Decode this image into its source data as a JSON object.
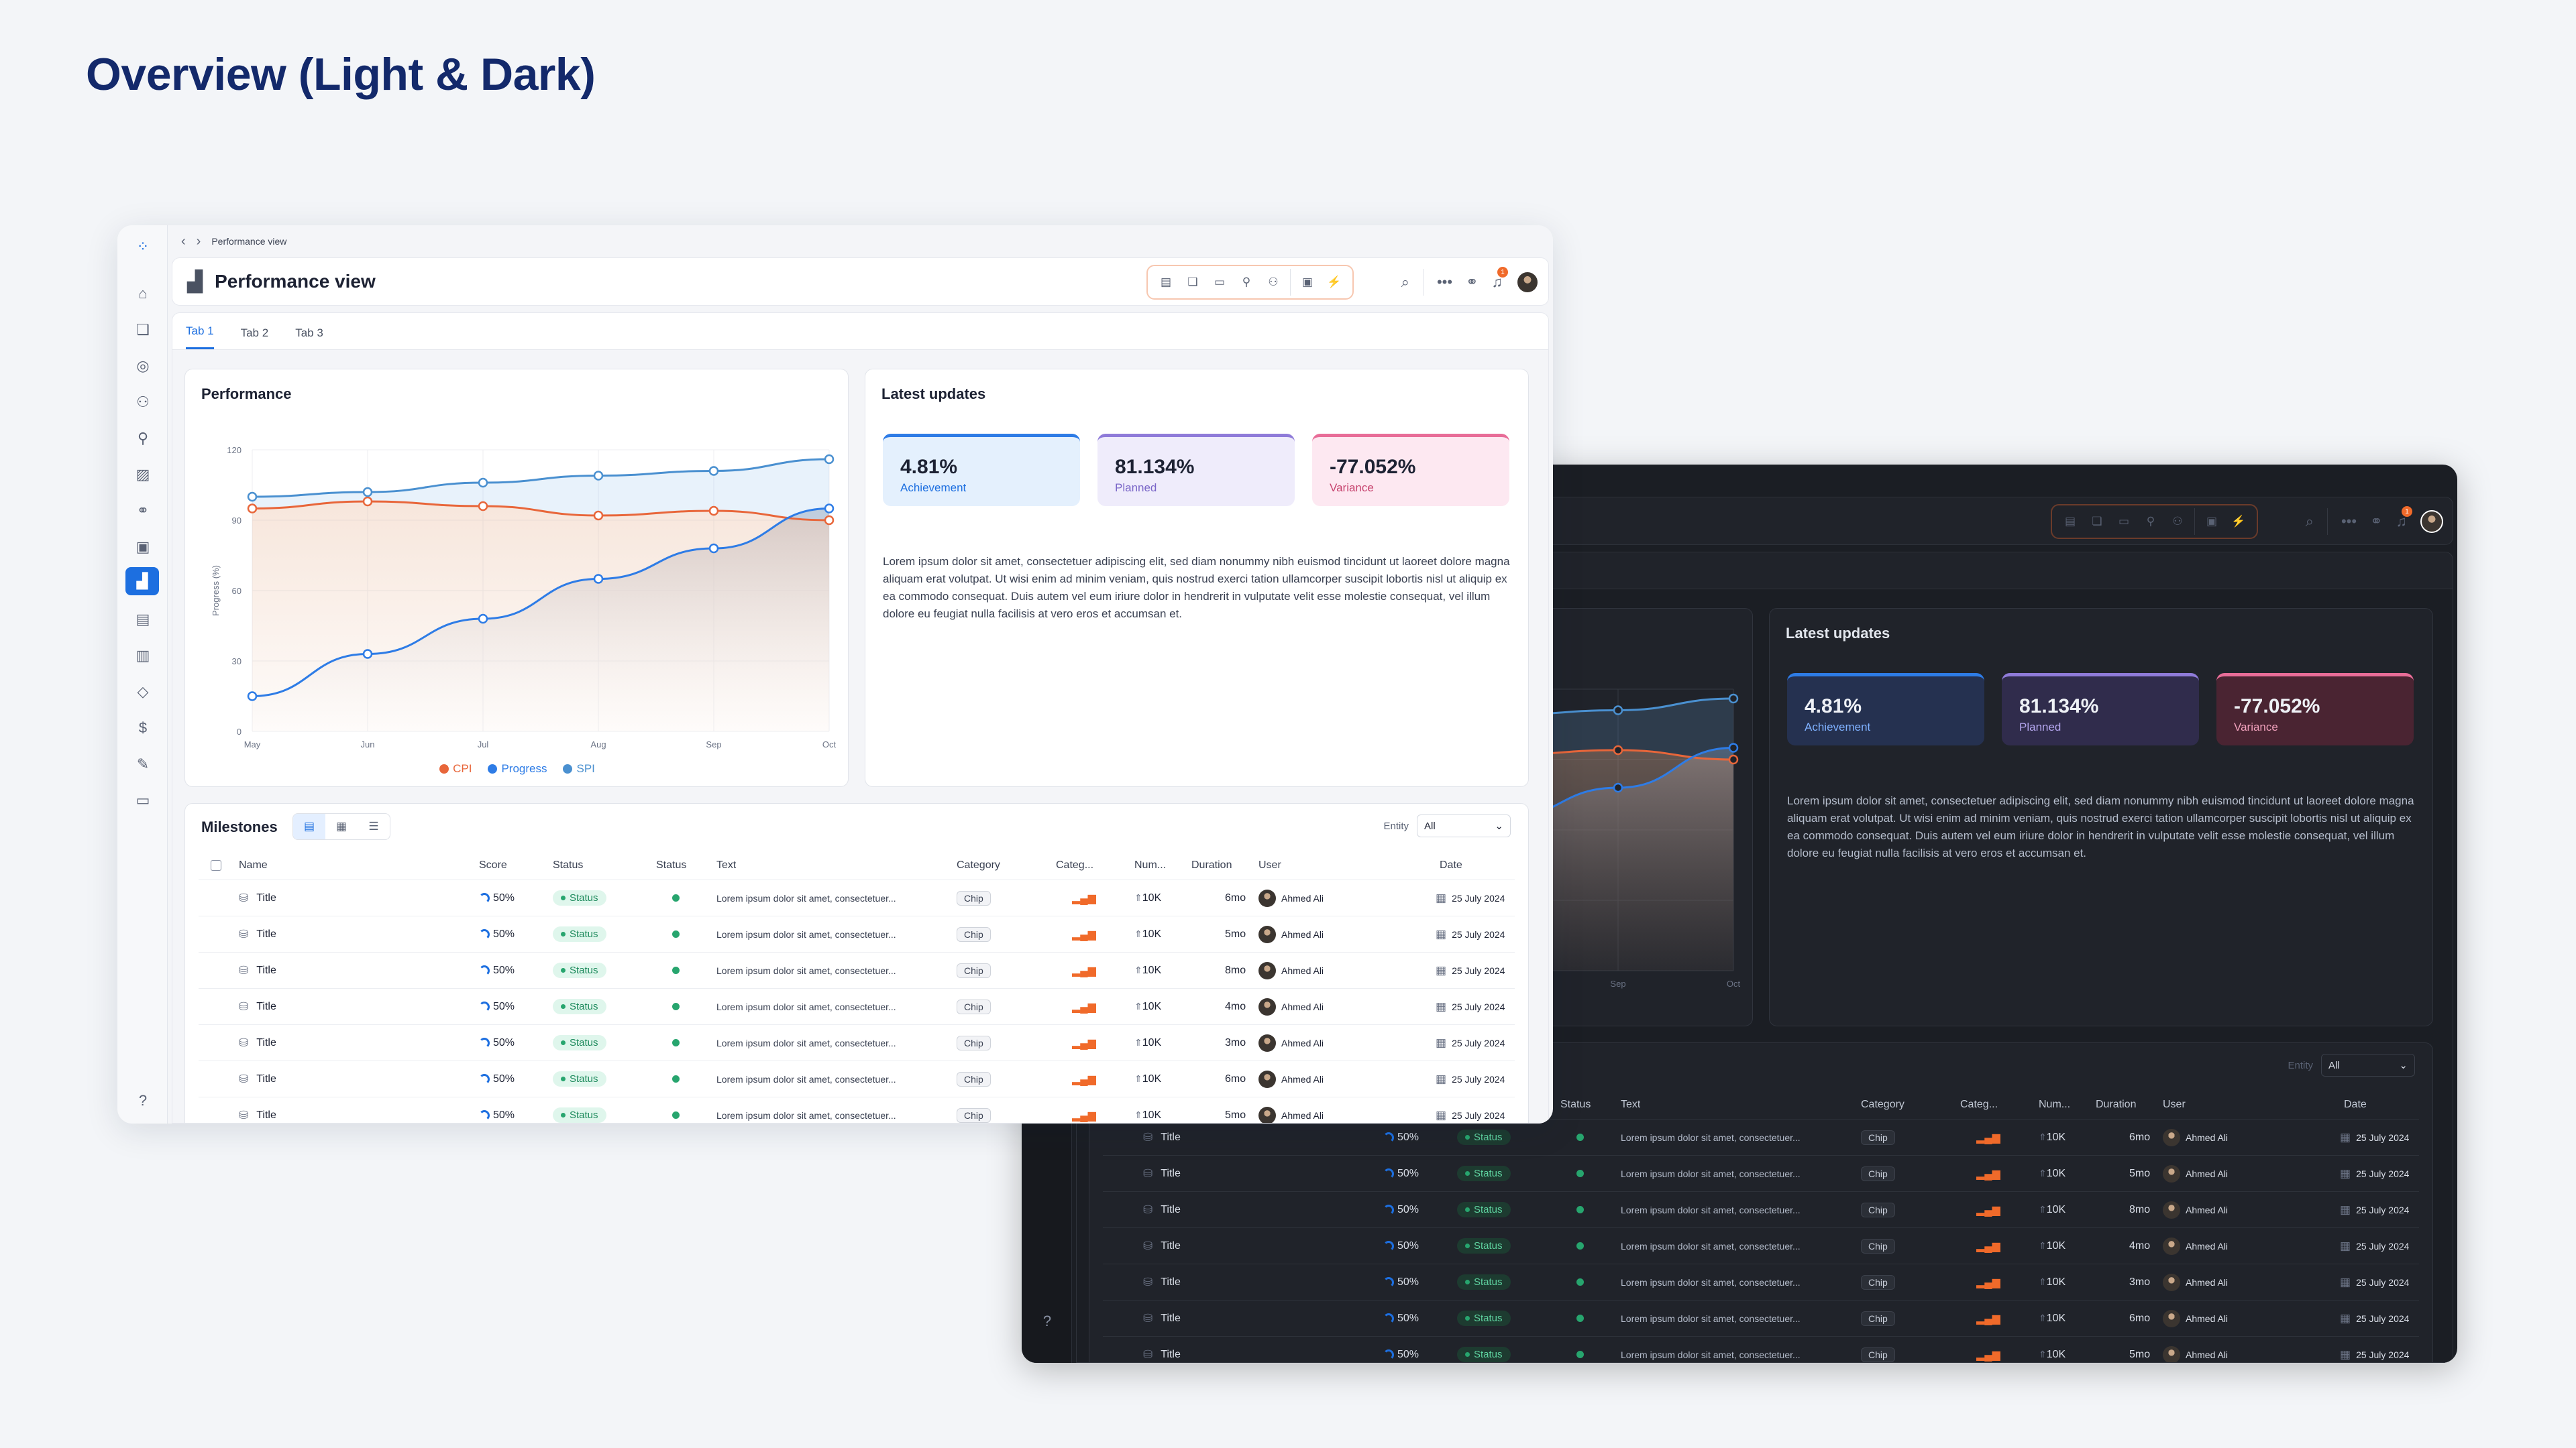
{
  "page": {
    "title": "Overview (Light & Dark)"
  },
  "app": {
    "breadcrumb": "Performance view",
    "title": "Performance view",
    "notification_count": "1",
    "tabs": [
      "Tab 1",
      "Tab 2",
      "Tab 3"
    ]
  },
  "performance": {
    "title": "Performance",
    "chart_data": {
      "type": "line",
      "categories": [
        "May",
        "Jun",
        "Jul",
        "Aug",
        "Sep",
        "Oct"
      ],
      "ylabel": "Progress (%)",
      "ylim": [
        0,
        120
      ],
      "yticks": [
        "120",
        "90",
        "60",
        "30",
        "0"
      ],
      "legend": "bottom",
      "series": [
        {
          "name": "CPI",
          "color": "#e8663a",
          "values": [
            95,
            98,
            96,
            92,
            94,
            90
          ]
        },
        {
          "name": "Progress",
          "color": "#2e7ce6",
          "values": [
            15,
            33,
            48,
            65,
            78,
            95
          ]
        },
        {
          "name": "SPI",
          "color": "#4a90d0",
          "values": [
            100,
            102,
            106,
            109,
            111,
            116
          ]
        }
      ]
    }
  },
  "updates": {
    "title": "Latest updates",
    "kpis": [
      {
        "value": "4.81%",
        "label": "Achievement"
      },
      {
        "value": "81.134%",
        "label": "Planned"
      },
      {
        "value": "-77.052%",
        "label": "Variance"
      }
    ],
    "text": "Lorem ipsum dolor sit amet, consectetuer adipiscing elit, sed diam nonummy nibh euismod tincidunt ut laoreet dolore magna aliquam erat volutpat. Ut wisi enim ad minim veniam, quis nostrud exerci tation ullamcorper suscipit lobortis nisl ut aliquip ex ea commodo consequat. Duis autem vel eum iriure dolor in hendrerit in vulputate velit esse molestie consequat, vel illum dolore eu feugiat nulla facilisis at vero eros et accumsan et."
  },
  "milestones": {
    "title": "Milestones",
    "entity_label": "Entity",
    "entity_value": "All",
    "columns": [
      "Name",
      "Score",
      "Status",
      "Status",
      "Text",
      "Category",
      "Categ...",
      "Num...",
      "Duration",
      "User",
      "Date"
    ],
    "rows": [
      {
        "name": "Title",
        "score": "50%",
        "status": "Status",
        "text": "Lorem ipsum dolor sit amet, consectetuer...",
        "category": "Chip",
        "num": "10K",
        "duration": "6mo",
        "user": "Ahmed Ali",
        "date": "25 July 2024"
      },
      {
        "name": "Title",
        "score": "50%",
        "status": "Status",
        "text": "Lorem ipsum dolor sit amet, consectetuer...",
        "category": "Chip",
        "num": "10K",
        "duration": "5mo",
        "user": "Ahmed Ali",
        "date": "25 July 2024"
      },
      {
        "name": "Title",
        "score": "50%",
        "status": "Status",
        "text": "Lorem ipsum dolor sit amet, consectetuer...",
        "category": "Chip",
        "num": "10K",
        "duration": "8mo",
        "user": "Ahmed Ali",
        "date": "25 July 2024"
      },
      {
        "name": "Title",
        "score": "50%",
        "status": "Status",
        "text": "Lorem ipsum dolor sit amet, consectetuer...",
        "category": "Chip",
        "num": "10K",
        "duration": "4mo",
        "user": "Ahmed Ali",
        "date": "25 July 2024"
      },
      {
        "name": "Title",
        "score": "50%",
        "status": "Status",
        "text": "Lorem ipsum dolor sit amet, consectetuer...",
        "category": "Chip",
        "num": "10K",
        "duration": "3mo",
        "user": "Ahmed Ali",
        "date": "25 July 2024"
      },
      {
        "name": "Title",
        "score": "50%",
        "status": "Status",
        "text": "Lorem ipsum dolor sit amet, consectetuer...",
        "category": "Chip",
        "num": "10K",
        "duration": "6mo",
        "user": "Ahmed Ali",
        "date": "25 July 2024"
      },
      {
        "name": "Title",
        "score": "50%",
        "status": "Status",
        "text": "Lorem ipsum dolor sit amet, consectetuer...",
        "category": "Chip",
        "num": "10K",
        "duration": "5mo",
        "user": "Ahmed Ali",
        "date": "25 July 2024"
      }
    ]
  },
  "icons": {
    "rail": [
      "logo-icon",
      "home-icon",
      "layers-icon",
      "coins-icon",
      "team-icon",
      "hierarchy-icon",
      "image-icon",
      "link-icon",
      "briefcase-icon",
      "chart-icon",
      "table-icon",
      "map-icon",
      "box-icon",
      "dollar-icon",
      "edit-icon",
      "folder-icon",
      "help-icon"
    ]
  }
}
